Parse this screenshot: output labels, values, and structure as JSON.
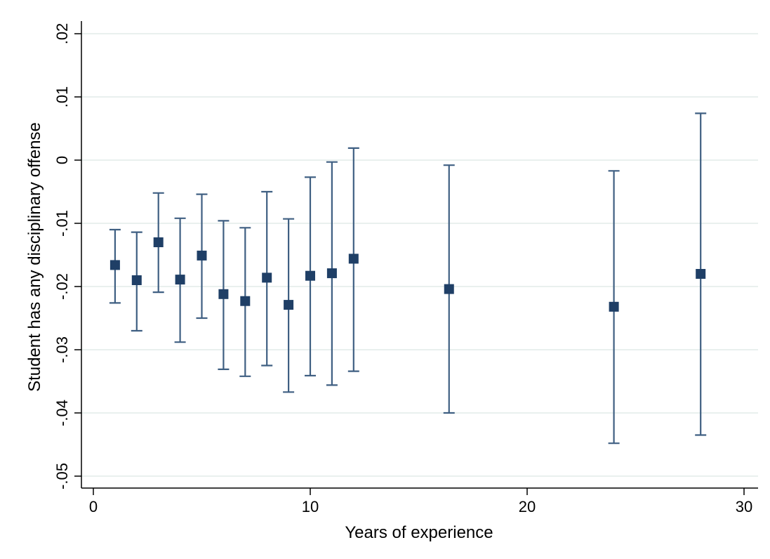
{
  "chart_data": {
    "type": "scatter",
    "title": "",
    "xlabel": "Years of experience",
    "ylabel": "Student has any disciplinary offense",
    "xlim": [
      0,
      30
    ],
    "ylim": [
      -0.05,
      0.02
    ],
    "xticks": [
      0,
      10,
      20,
      30
    ],
    "xtick_labels": [
      "0",
      "10",
      "20",
      "30"
    ],
    "yticks": [
      -0.05,
      -0.04,
      -0.03,
      -0.02,
      -0.01,
      0,
      0.01,
      0.02
    ],
    "ytick_labels": [
      "-.05",
      "-.04",
      "-.03",
      "-.02",
      "-.01",
      "0",
      ".01",
      ".02"
    ],
    "grid": true,
    "legend": "none",
    "colors": {
      "marker": "#1f3f66",
      "errorbar": "#3f5f82",
      "grid": "#e2ece9",
      "axis": "#000000"
    },
    "points": [
      {
        "x": 1,
        "y": -0.0166,
        "lo": -0.0226,
        "hi": -0.011
      },
      {
        "x": 2,
        "y": -0.019,
        "lo": -0.027,
        "hi": -0.0114
      },
      {
        "x": 3,
        "y": -0.013,
        "lo": -0.0209,
        "hi": -0.0052
      },
      {
        "x": 4,
        "y": -0.0189,
        "lo": -0.0288,
        "hi": -0.0092
      },
      {
        "x": 5,
        "y": -0.0151,
        "lo": -0.025,
        "hi": -0.0054
      },
      {
        "x": 6,
        "y": -0.0212,
        "lo": -0.0331,
        "hi": -0.0096
      },
      {
        "x": 7,
        "y": -0.0223,
        "lo": -0.0342,
        "hi": -0.0107
      },
      {
        "x": 8,
        "y": -0.0186,
        "lo": -0.0325,
        "hi": -0.005
      },
      {
        "x": 9,
        "y": -0.0229,
        "lo": -0.0367,
        "hi": -0.0093
      },
      {
        "x": 10,
        "y": -0.0183,
        "lo": -0.0341,
        "hi": -0.0027
      },
      {
        "x": 11,
        "y": -0.0179,
        "lo": -0.0356,
        "hi": -0.0003
      },
      {
        "x": 12,
        "y": -0.0156,
        "lo": -0.0334,
        "hi": 0.0019
      },
      {
        "x": 16.4,
        "y": -0.0204,
        "lo": -0.04,
        "hi": -0.0008
      },
      {
        "x": 24,
        "y": -0.0232,
        "lo": -0.0448,
        "hi": -0.0017
      },
      {
        "x": 28,
        "y": -0.018,
        "lo": -0.0435,
        "hi": 0.0074
      }
    ]
  }
}
